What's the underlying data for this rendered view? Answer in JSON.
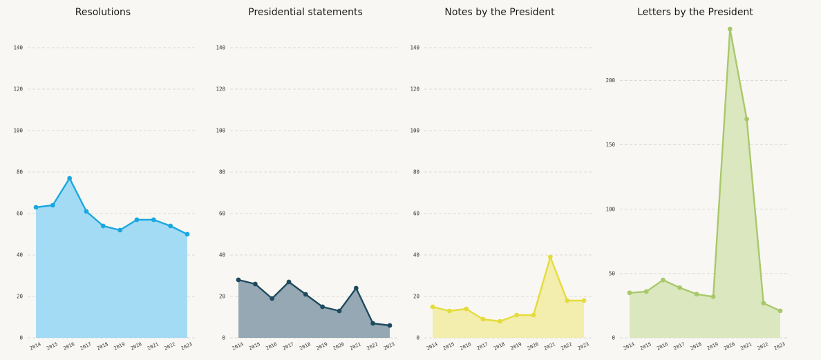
{
  "colors": {
    "background": "#f8f7f3",
    "grid": "#cfcfcf"
  },
  "chart_data": [
    {
      "type": "area",
      "title": "Resolutions",
      "color": "#1aa7e0",
      "fill": "#9ed9f4",
      "categories": [
        "2014",
        "2015",
        "2016",
        "2017",
        "2018",
        "2019",
        "2020",
        "2021",
        "2022",
        "2023"
      ],
      "values": [
        63,
        64,
        77,
        61,
        54,
        52,
        57,
        57,
        54,
        50
      ],
      "ylim": [
        0,
        140
      ],
      "yticks": [
        0,
        20,
        40,
        60,
        80,
        100,
        120,
        140
      ],
      "grid": true,
      "xlabel": "",
      "ylabel": ""
    },
    {
      "type": "area",
      "title": "Presidential statements",
      "color": "#1f4a5e",
      "fill": "#8fa3b0",
      "categories": [
        "2014",
        "2015",
        "2016",
        "2017",
        "2018",
        "2019",
        "2020",
        "2021",
        "2022",
        "2023"
      ],
      "values": [
        28,
        26,
        19,
        27,
        21,
        15,
        13,
        24,
        7,
        6
      ],
      "ylim": [
        0,
        140
      ],
      "yticks": [
        0,
        20,
        40,
        60,
        80,
        100,
        120,
        140
      ],
      "grid": true,
      "xlabel": "",
      "ylabel": ""
    },
    {
      "type": "area",
      "title": "Notes by the President",
      "color": "#e5dc3c",
      "fill": "#f2ecaa",
      "categories": [
        "2014",
        "2015",
        "2016",
        "2017",
        "2018",
        "2019",
        "2020",
        "2021",
        "2022",
        "2023"
      ],
      "values": [
        15,
        13,
        14,
        9,
        8,
        11,
        11,
        39,
        18,
        18
      ],
      "ylim": [
        0,
        140
      ],
      "yticks": [
        0,
        20,
        40,
        60,
        80,
        100,
        120,
        140
      ],
      "grid": true,
      "xlabel": "",
      "ylabel": ""
    },
    {
      "type": "area",
      "title": "Letters by the President",
      "color": "#a9c86a",
      "fill": "#d9e6bc",
      "categories": [
        "2014",
        "2015",
        "2016",
        "2017",
        "2018",
        "2019",
        "2020",
        "2021",
        "2022",
        "2023"
      ],
      "values": [
        35,
        36,
        45,
        39,
        34,
        32,
        240,
        170,
        27,
        21
      ],
      "ylim": [
        0,
        240
      ],
      "yticks": [
        0,
        50,
        100,
        150,
        200
      ],
      "grid": true,
      "xlabel": "",
      "ylabel": ""
    }
  ]
}
